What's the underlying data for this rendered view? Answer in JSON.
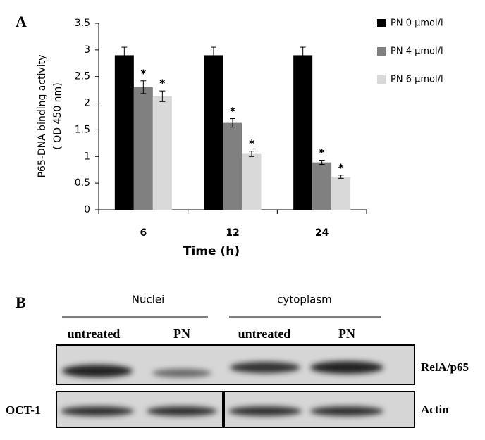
{
  "chart_data": {
    "type": "bar",
    "ylabel": [
      "P65-DNA binding  activity",
      "( OD 450 nm)"
    ],
    "xlabel": "Time (h)",
    "categories": [
      "6",
      "12",
      "24"
    ],
    "series": [
      {
        "name": "PN 0 μmol/l",
        "color": "#000000",
        "values": [
          2.9,
          2.9,
          2.9
        ],
        "errors": [
          0.15,
          0.15,
          0.15
        ]
      },
      {
        "name": "PN 4 μmol/l",
        "color": "#808080",
        "values": [
          2.3,
          1.63,
          0.89
        ],
        "errors": [
          0.12,
          0.08,
          0.04
        ],
        "significance": [
          "*",
          "*",
          "*"
        ]
      },
      {
        "name": "PN 6 μmol/l",
        "color": "#d9d9d9",
        "values": [
          2.13,
          1.05,
          0.62
        ],
        "errors": [
          0.1,
          0.05,
          0.03
        ],
        "significance": [
          "*",
          "*",
          "*"
        ]
      }
    ],
    "ylim": [
      0,
      3.5
    ],
    "yticks": [
      0,
      0.5,
      1,
      1.5,
      2,
      2.5,
      3,
      3.5
    ],
    "legend": "right"
  },
  "panel_labels": [
    "A",
    "B"
  ],
  "blot": {
    "groups": [
      "Nuclei",
      "cytoplasm"
    ],
    "lanes": [
      "untreated",
      "PN",
      "untreated",
      "PN"
    ],
    "right_labels": [
      "RelA/p65",
      "Actin"
    ],
    "left_label": "OCT-1"
  }
}
